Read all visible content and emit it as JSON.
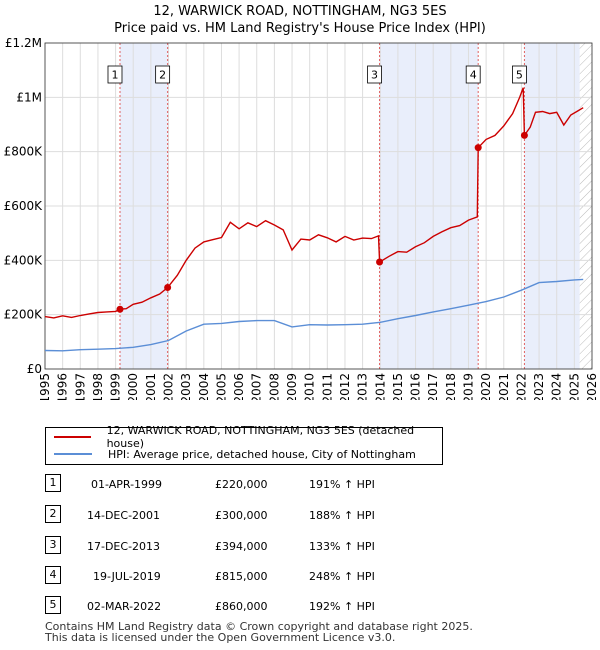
{
  "header": {
    "title": "12, WARWICK ROAD, NOTTINGHAM, NG3 5ES",
    "subtitle": "Price paid vs. HM Land Registry's House Price Index (HPI)"
  },
  "chart_data": {
    "type": "line",
    "title": "12, WARWICK ROAD, NOTTINGHAM, NG3 5ES",
    "subtitle": "Price paid vs. HM Land Registry's House Price Index (HPI)",
    "xlim": [
      1995,
      2026
    ],
    "ylim": [
      0,
      1200000
    ],
    "x_ticks": [
      1995,
      1996,
      1997,
      1998,
      1999,
      2000,
      2001,
      2002,
      2003,
      2004,
      2005,
      2006,
      2007,
      2008,
      2009,
      2010,
      2011,
      2012,
      2013,
      2014,
      2015,
      2016,
      2017,
      2018,
      2019,
      2020,
      2021,
      2022,
      2023,
      2024,
      2025,
      2026
    ],
    "y_ticks": [
      {
        "value": 0,
        "label": "£0"
      },
      {
        "value": 200000,
        "label": "£200K"
      },
      {
        "value": 400000,
        "label": "£400K"
      },
      {
        "value": 600000,
        "label": "£600K"
      },
      {
        "value": 800000,
        "label": "£800K"
      },
      {
        "value": 1000000,
        "label": "£1M"
      },
      {
        "value": 1200000,
        "label": "£1.2M"
      }
    ],
    "shaded_periods": [
      [
        1999.25,
        2001.95
      ],
      [
        2013.96,
        2019.55
      ],
      [
        2022.17,
        2025.3
      ]
    ],
    "hatched_from": 2025.3,
    "series": [
      {
        "name": "12, WARWICK ROAD, NOTTINGHAM, NG3 5ES (detached house)",
        "color": "#cc0000",
        "points": [
          [
            1995.0,
            193000
          ],
          [
            1995.5,
            188000
          ],
          [
            1996.0,
            196000
          ],
          [
            1996.5,
            190000
          ],
          [
            1997.0,
            197000
          ],
          [
            1997.5,
            203000
          ],
          [
            1998.0,
            208000
          ],
          [
            1998.5,
            210000
          ],
          [
            1999.0,
            212000
          ],
          [
            1999.25,
            220000
          ],
          [
            1999.6,
            222000
          ],
          [
            2000.0,
            238000
          ],
          [
            2000.5,
            246000
          ],
          [
            2001.0,
            262000
          ],
          [
            2001.5,
            276000
          ],
          [
            2001.95,
            300000
          ],
          [
            2002.5,
            345000
          ],
          [
            2003.0,
            400000
          ],
          [
            2003.5,
            445000
          ],
          [
            2004.0,
            468000
          ],
          [
            2004.5,
            476000
          ],
          [
            2005.0,
            484000
          ],
          [
            2005.5,
            540000
          ],
          [
            2006.0,
            516000
          ],
          [
            2006.5,
            538000
          ],
          [
            2007.0,
            524000
          ],
          [
            2007.5,
            546000
          ],
          [
            2008.0,
            530000
          ],
          [
            2008.5,
            512000
          ],
          [
            2009.0,
            438000
          ],
          [
            2009.5,
            478000
          ],
          [
            2010.0,
            475000
          ],
          [
            2010.5,
            494000
          ],
          [
            2011.0,
            483000
          ],
          [
            2011.5,
            468000
          ],
          [
            2012.0,
            488000
          ],
          [
            2012.5,
            475000
          ],
          [
            2013.0,
            482000
          ],
          [
            2013.5,
            480000
          ],
          [
            2013.9,
            490000
          ],
          [
            2013.96,
            394000
          ],
          [
            2014.5,
            415000
          ],
          [
            2015.0,
            432000
          ],
          [
            2015.5,
            430000
          ],
          [
            2016.0,
            450000
          ],
          [
            2016.5,
            465000
          ],
          [
            2017.0,
            488000
          ],
          [
            2017.5,
            505000
          ],
          [
            2018.0,
            520000
          ],
          [
            2018.5,
            528000
          ],
          [
            2019.0,
            548000
          ],
          [
            2019.5,
            560000
          ],
          [
            2019.55,
            815000
          ],
          [
            2020.0,
            845000
          ],
          [
            2020.5,
            860000
          ],
          [
            2021.0,
            895000
          ],
          [
            2021.5,
            940000
          ],
          [
            2021.9,
            1000000
          ],
          [
            2022.1,
            1035000
          ],
          [
            2022.17,
            860000
          ],
          [
            2022.5,
            890000
          ],
          [
            2022.8,
            945000
          ],
          [
            2023.2,
            948000
          ],
          [
            2023.6,
            940000
          ],
          [
            2024.0,
            945000
          ],
          [
            2024.4,
            898000
          ],
          [
            2024.8,
            935000
          ],
          [
            2025.2,
            950000
          ],
          [
            2025.5,
            962000
          ]
        ]
      },
      {
        "name": "HPI: Average price, detached house, City of Nottingham",
        "color": "#5b8ed6",
        "points": [
          [
            1995.0,
            68000
          ],
          [
            1996.0,
            67000
          ],
          [
            1997.0,
            71000
          ],
          [
            1998.0,
            73000
          ],
          [
            1999.0,
            75000
          ],
          [
            2000.0,
            80000
          ],
          [
            2001.0,
            90000
          ],
          [
            2002.0,
            105000
          ],
          [
            2003.0,
            140000
          ],
          [
            2004.0,
            165000
          ],
          [
            2005.0,
            168000
          ],
          [
            2006.0,
            175000
          ],
          [
            2007.0,
            178000
          ],
          [
            2008.0,
            178000
          ],
          [
            2009.0,
            155000
          ],
          [
            2010.0,
            163000
          ],
          [
            2011.0,
            162000
          ],
          [
            2012.0,
            163000
          ],
          [
            2013.0,
            165000
          ],
          [
            2014.0,
            172000
          ],
          [
            2015.0,
            185000
          ],
          [
            2016.0,
            197000
          ],
          [
            2017.0,
            210000
          ],
          [
            2018.0,
            222000
          ],
          [
            2019.0,
            235000
          ],
          [
            2020.0,
            248000
          ],
          [
            2021.0,
            265000
          ],
          [
            2022.0,
            290000
          ],
          [
            2023.0,
            318000
          ],
          [
            2024.0,
            322000
          ],
          [
            2025.0,
            328000
          ],
          [
            2025.5,
            330000
          ]
        ]
      }
    ],
    "sales": [
      {
        "marker": "1",
        "x": 1999.25,
        "value": 220000
      },
      {
        "marker": "2",
        "x": 2001.95,
        "value": 300000
      },
      {
        "marker": "3",
        "x": 2013.96,
        "value": 394000
      },
      {
        "marker": "4",
        "x": 2019.55,
        "value": 815000
      },
      {
        "marker": "5",
        "x": 2022.17,
        "value": 860000
      }
    ]
  },
  "legend": {
    "property_label": "12, WARWICK ROAD, NOTTINGHAM, NG3 5ES (detached house)",
    "hpi_label": "HPI: Average price, detached house, City of Nottingham",
    "property_color": "#cc0000",
    "hpi_color": "#5b8ed6"
  },
  "transactions": [
    {
      "num": "1",
      "date": "01-APR-1999",
      "price": "£220,000",
      "hpi": "191% ↑ HPI"
    },
    {
      "num": "2",
      "date": "14-DEC-2001",
      "price": "£300,000",
      "hpi": "188% ↑ HPI"
    },
    {
      "num": "3",
      "date": "17-DEC-2013",
      "price": "£394,000",
      "hpi": "133% ↑ HPI"
    },
    {
      "num": "4",
      "date": "19-JUL-2019",
      "price": "£815,000",
      "hpi": "248% ↑ HPI"
    },
    {
      "num": "5",
      "date": "02-MAR-2022",
      "price": "£860,000",
      "hpi": "192% ↑ HPI"
    }
  ],
  "footer": {
    "line1": "Contains HM Land Registry data © Crown copyright and database right 2025.",
    "line2": "This data is licensed under the Open Government Licence v3.0."
  }
}
